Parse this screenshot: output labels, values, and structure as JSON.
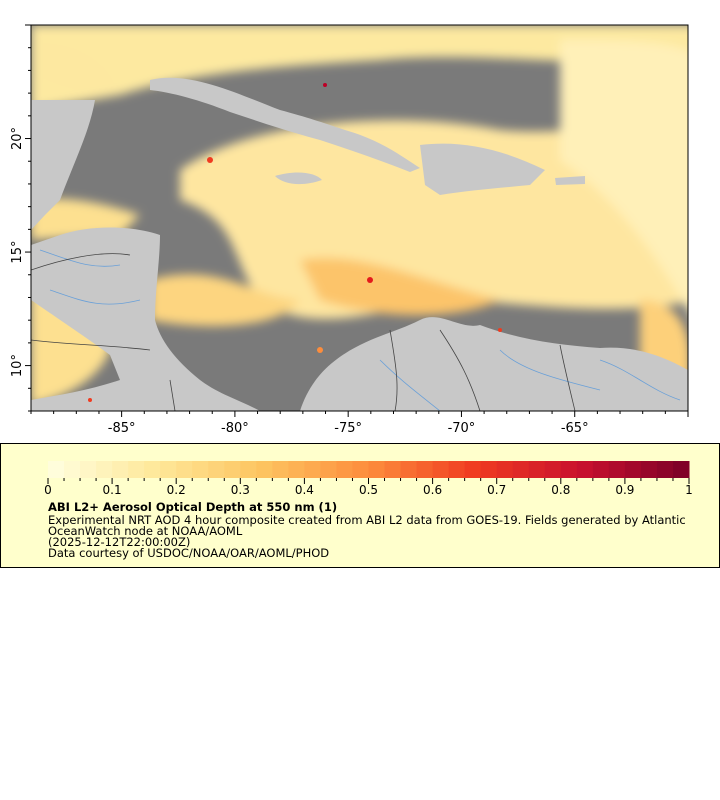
{
  "map": {
    "lon_range": [
      -89,
      -60
    ],
    "lat_range": [
      8,
      25
    ],
    "x_ticks": [
      "-85°",
      "-80°",
      "-75°",
      "-70°",
      "-65°"
    ],
    "x_tick_values": [
      -85,
      -80,
      -75,
      -70,
      -65
    ],
    "y_ticks": [
      "20°",
      "15°",
      "10°"
    ],
    "y_tick_values": [
      20,
      15,
      10
    ],
    "colors": {
      "ocean_nodata": "#7a7a7a",
      "land": "#c8c8c8",
      "rivers": "#6aa0d8",
      "borders": "#333333"
    }
  },
  "legend": {
    "colorbar_ticks": [
      "0",
      "0.1",
      "0.2",
      "0.3",
      "0.4",
      "0.5",
      "0.6",
      "0.7",
      "0.8",
      "0.9",
      "1"
    ],
    "colorbar_range": [
      0,
      1
    ],
    "colormap_stops": [
      "#ffffe0",
      "#fee89a",
      "#fdc460",
      "#fd8d3c",
      "#f03b20",
      "#c8102e",
      "#7a0027"
    ],
    "title": "ABI L2+ Aerosol Optical Depth at 550 nm (1)",
    "line1": "Experimental NRT AOD 4 hour composite created from ABI L2 data from GOES-19. Fields generated by Atlantic",
    "line2": "OceanWatch node at NOAA/AOML",
    "line3": "(2025-12-12T22:00:00Z)",
    "line4": "Data courtesy of USDOC/NOAA/OAR/AOML/PHOD",
    "background": "#ffffcc"
  }
}
